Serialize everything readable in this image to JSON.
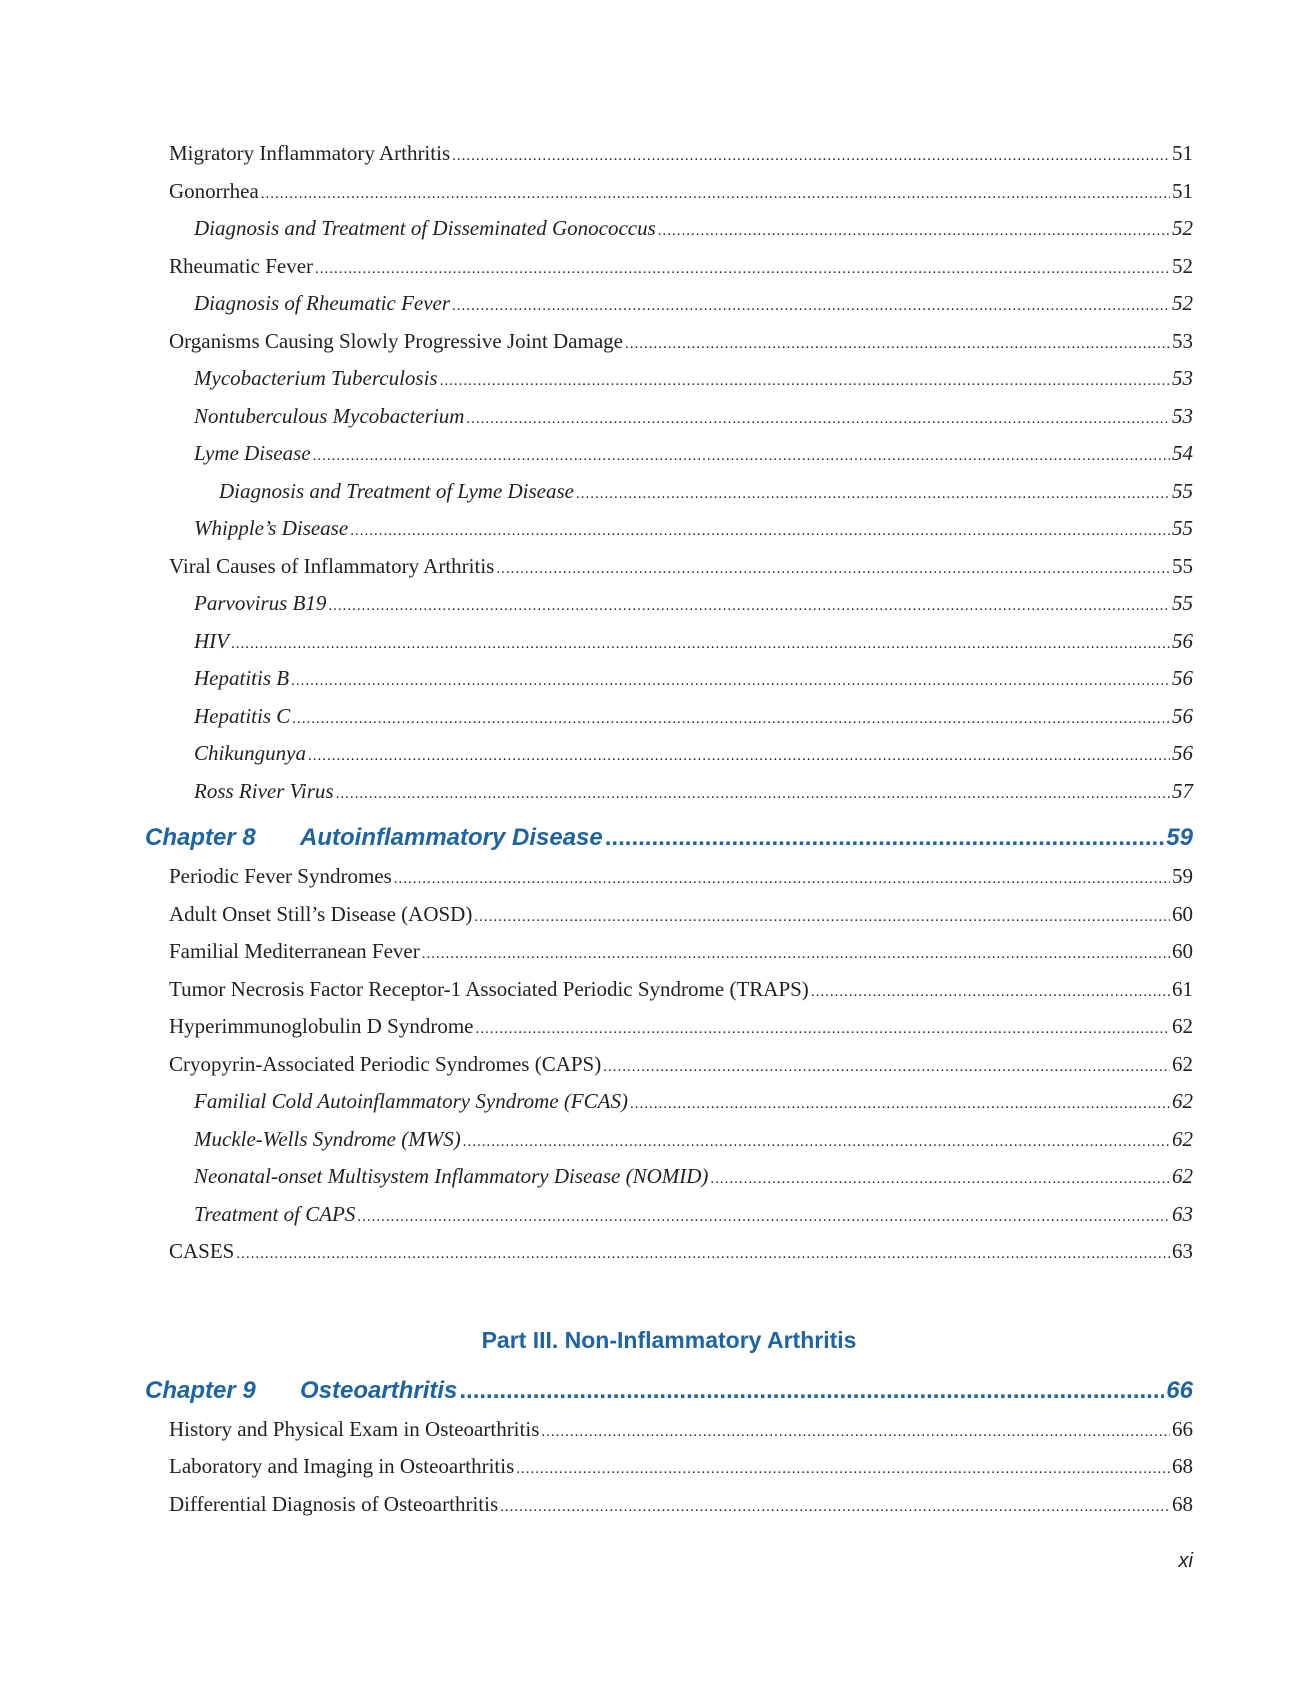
{
  "accent_color": "#1d64a4",
  "entries": [
    {
      "kind": "l1",
      "title": "Migratory Inflammatory Arthritis",
      "page": "51"
    },
    {
      "kind": "l1",
      "title": "Gonorrhea",
      "page": "51"
    },
    {
      "kind": "l2",
      "title": "Diagnosis and Treatment of Disseminated Gonococcus",
      "page": "52"
    },
    {
      "kind": "l1",
      "title": "Rheumatic Fever",
      "page": "52"
    },
    {
      "kind": "l2",
      "title": "Diagnosis of Rheumatic Fever",
      "page": "52"
    },
    {
      "kind": "l1",
      "title": "Organisms Causing Slowly Progressive Joint Damage",
      "page": "53"
    },
    {
      "kind": "l2",
      "title": "Mycobacterium Tuberculosis",
      "page": "53"
    },
    {
      "kind": "l2",
      "title": "Nontuberculous Mycobacterium",
      "page": "53"
    },
    {
      "kind": "l2",
      "title": "Lyme Disease",
      "page": "54"
    },
    {
      "kind": "l3",
      "title": "Diagnosis and Treatment of Lyme Disease",
      "page": "55"
    },
    {
      "kind": "l2",
      "title": "Whipple’s Disease",
      "page": "55"
    },
    {
      "kind": "l1",
      "title": "Viral Causes of Inflammatory Arthritis",
      "page": "55"
    },
    {
      "kind": "l2",
      "title": "Parvovirus B19",
      "page": "55"
    },
    {
      "kind": "l2",
      "title": "HIV",
      "page": "56"
    },
    {
      "kind": "l2",
      "title": "Hepatitis B",
      "page": "56"
    },
    {
      "kind": "l2",
      "title": "Hepatitis C",
      "page": "56"
    },
    {
      "kind": "l2",
      "title": "Chikungunya",
      "page": "56"
    },
    {
      "kind": "l2",
      "title": "Ross River Virus",
      "page": "57"
    },
    {
      "kind": "ch",
      "number": "Chapter 8",
      "title": "Autoinflammatory Disease",
      "page": "59",
      "gap": "gap-ch8"
    },
    {
      "kind": "l1",
      "title": "Periodic Fever Syndromes",
      "page": "59"
    },
    {
      "kind": "l1",
      "title": "Adult Onset Still’s Disease (AOSD)",
      "page": "60"
    },
    {
      "kind": "l1",
      "title": "Familial Mediterranean Fever",
      "page": "60"
    },
    {
      "kind": "l1",
      "title": "Tumor Necrosis Factor Receptor-1 Associated Periodic Syndrome (TRAPS)",
      "page": "61"
    },
    {
      "kind": "l1",
      "title": "Hyperimmunoglobulin D Syndrome",
      "page": "62"
    },
    {
      "kind": "l1",
      "title": "Cryopyrin-Associated Periodic Syndromes (CAPS)",
      "page": "62"
    },
    {
      "kind": "l2",
      "title": "Familial Cold Autoinflammatory Syndrome (FCAS)",
      "page": "62"
    },
    {
      "kind": "l2",
      "title": "Muckle-Wells Syndrome (MWS)",
      "page": "62"
    },
    {
      "kind": "l2",
      "title": "Neonatal-onset Multisystem Inflammatory Disease (NOMID)",
      "page": "62"
    },
    {
      "kind": "l2",
      "title": "Treatment of CAPS",
      "page": "63"
    },
    {
      "kind": "l1",
      "title": "CASES",
      "page": "63"
    },
    {
      "kind": "part",
      "title": "Part III. Non-Inflammatory Arthritis"
    },
    {
      "kind": "ch",
      "number": "Chapter 9",
      "title": "Osteoarthritis",
      "page": "66",
      "gap": "gap-ch9"
    },
    {
      "kind": "l1",
      "title": "History and Physical Exam in Osteoarthritis",
      "page": "66"
    },
    {
      "kind": "l1",
      "title": "Laboratory and Imaging in Osteoarthritis",
      "page": "68"
    },
    {
      "kind": "l1",
      "title": "Differential Diagnosis of Osteoarthritis",
      "page": "68"
    }
  ],
  "folio": "xi"
}
